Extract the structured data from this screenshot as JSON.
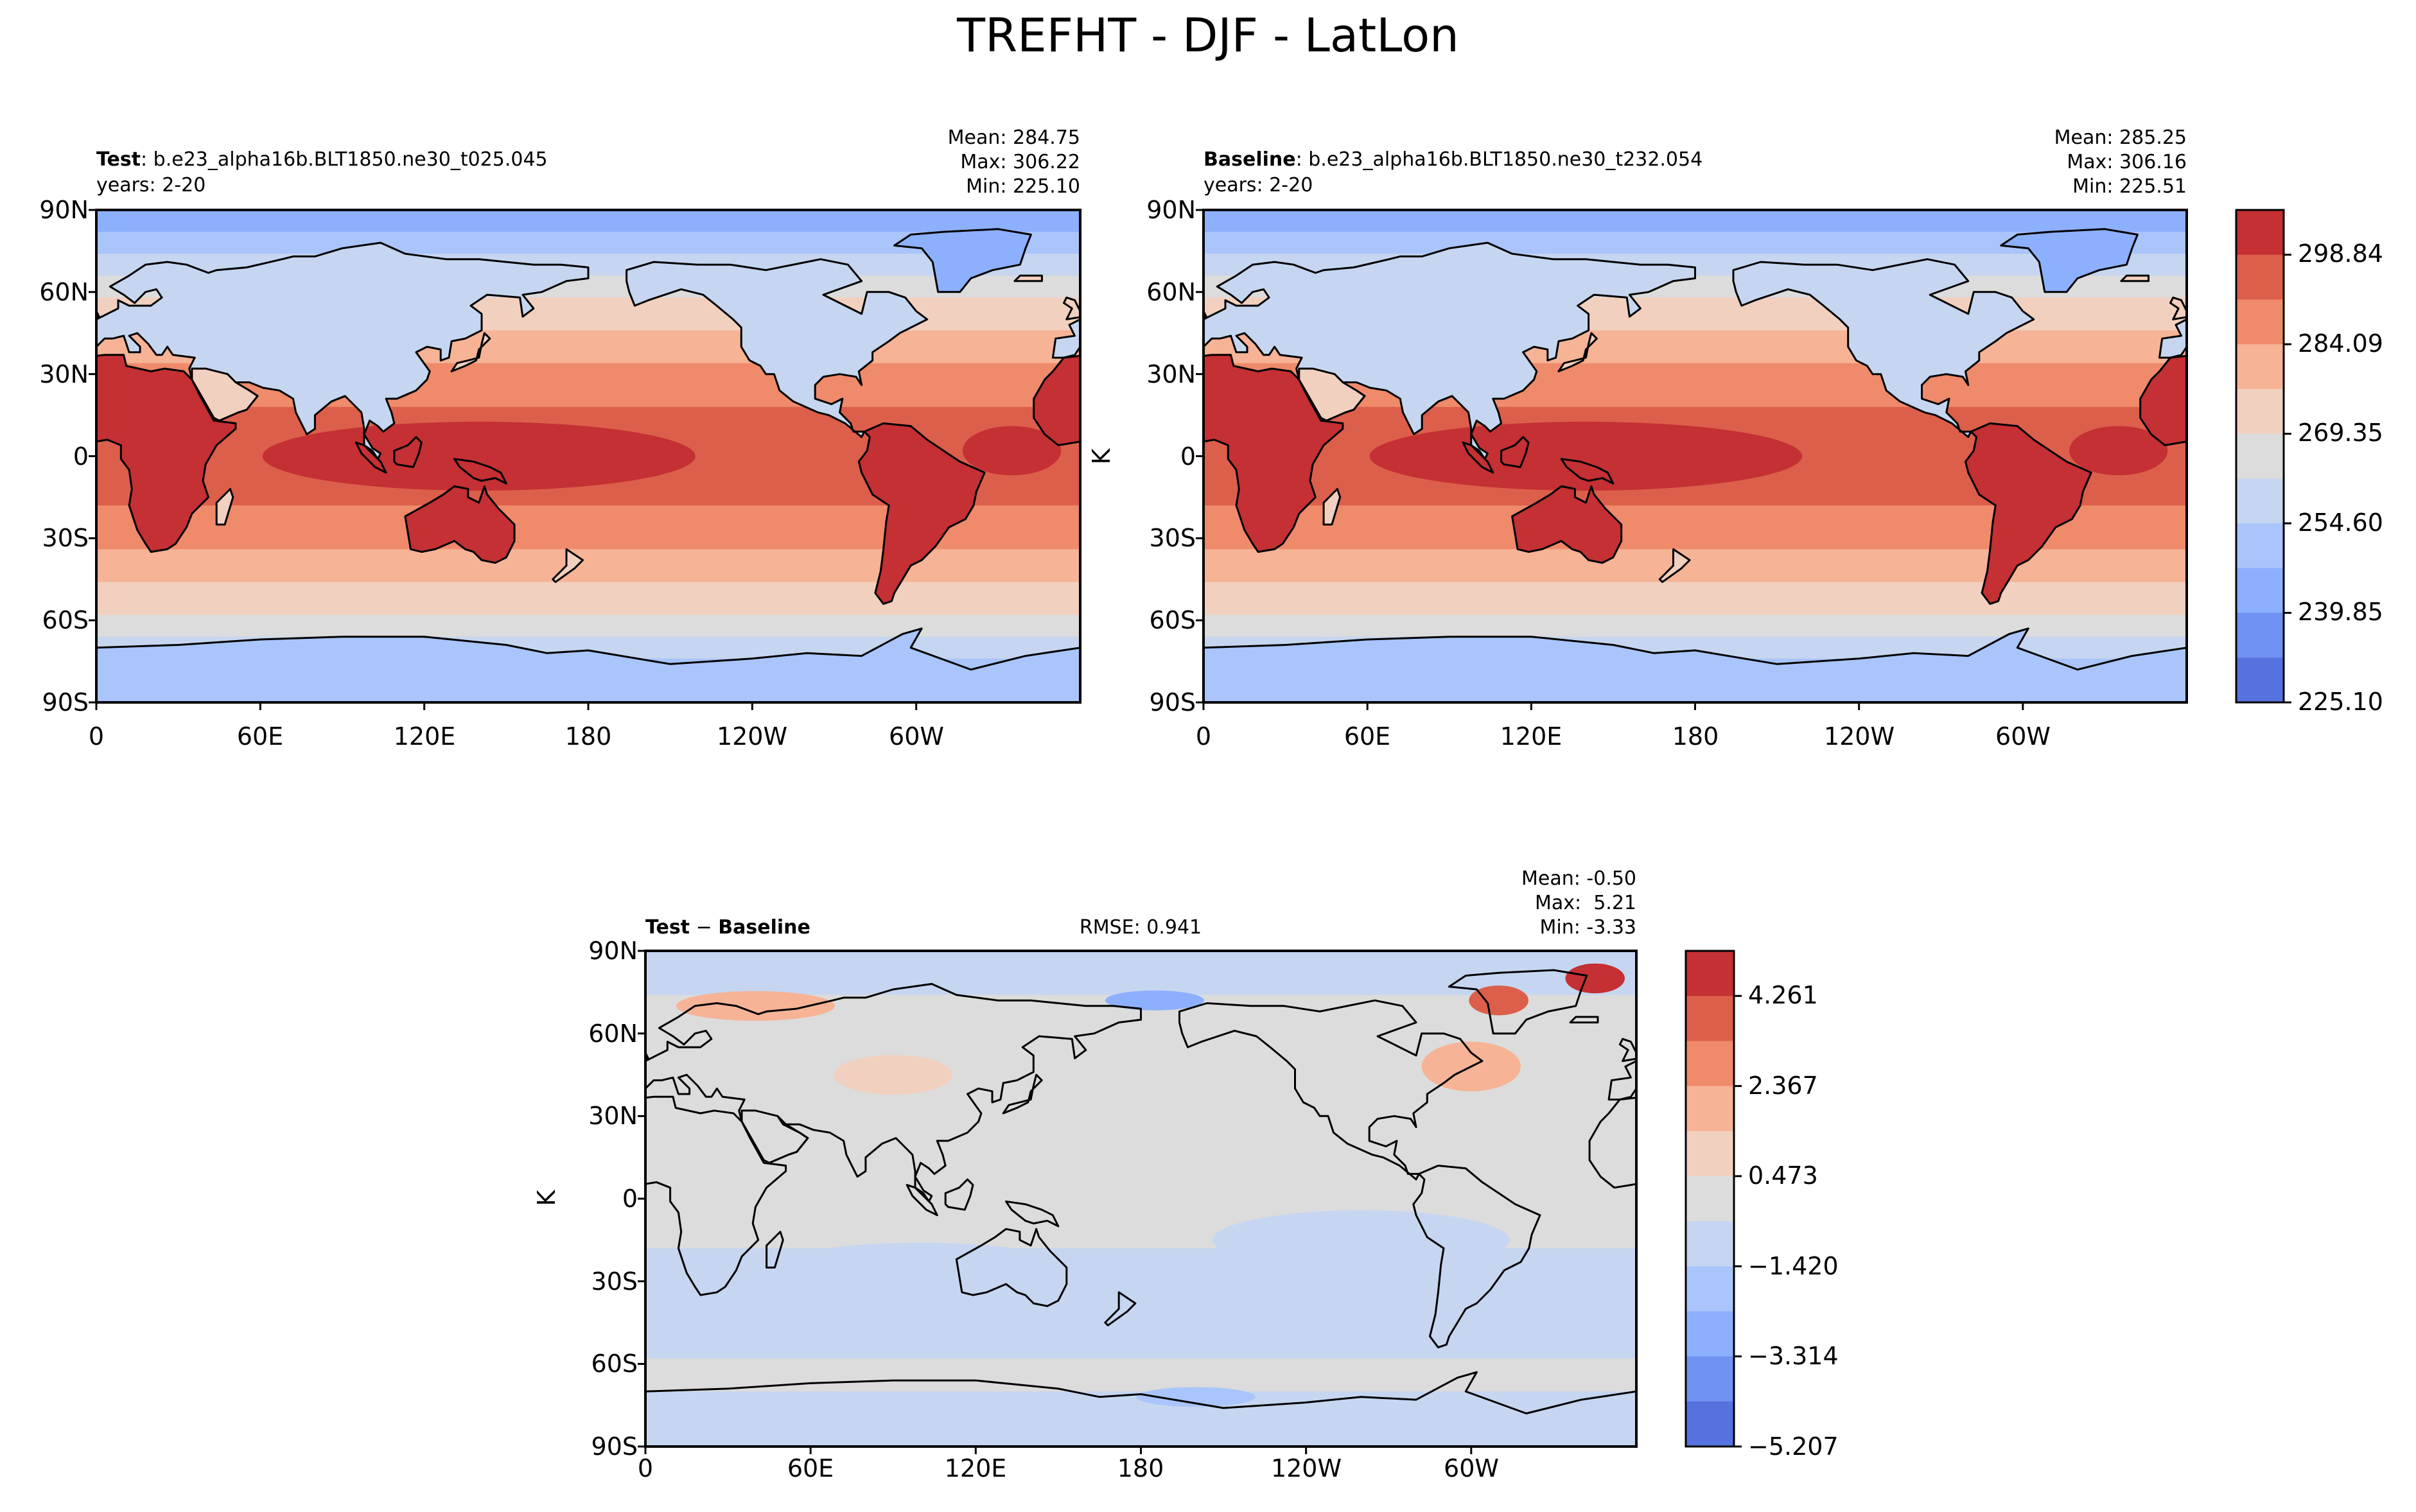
{
  "figure_title": "TREFHT - DJF - LatLon",
  "chart_data": [
    {
      "type": "heatmap",
      "panel": "test",
      "label_bold": "Test",
      "label_rest": ": b.e23_alpha16b.BLT1850.ne30_t025.045",
      "years": "years: 2-20",
      "stats": [
        "Mean: 284.75",
        "Max: 306.22",
        "Min: 225.10"
      ],
      "ylabel": "",
      "x_ticks": [
        "0",
        "60E",
        "120E",
        "180",
        "120W",
        "60W"
      ],
      "y_ticks": [
        "90N",
        "60N",
        "30N",
        "0",
        "30S",
        "60S",
        "90S"
      ],
      "xlim": [
        0,
        360
      ],
      "ylim": [
        -90,
        90
      ],
      "field_kind": "absolute",
      "value_range": [
        225.1,
        306.22
      ]
    },
    {
      "type": "heatmap",
      "panel": "baseline",
      "label_bold": "Baseline",
      "label_rest": ": b.e23_alpha16b.BLT1850.ne30_t232.054",
      "years": "years: 2-20",
      "stats": [
        "Mean: 285.25",
        "Max: 306.16",
        "Min: 225.51"
      ],
      "ylabel": "K",
      "x_ticks": [
        "0",
        "60E",
        "120E",
        "180",
        "120W",
        "60W"
      ],
      "y_ticks": [
        "90N",
        "60N",
        "30N",
        "0",
        "30S",
        "60S",
        "90S"
      ],
      "xlim": [
        0,
        360
      ],
      "ylim": [
        -90,
        90
      ],
      "field_kind": "absolute",
      "value_range": [
        225.51,
        306.16
      ],
      "colorbar": {
        "labels": [
          "298.84",
          "284.09",
          "269.35",
          "254.60",
          "239.85",
          "225.10"
        ],
        "levels": 11,
        "colors": [
          "#c43033",
          "#dc5f4b",
          "#ef8a6b",
          "#f6b396",
          "#f2d0bf",
          "#dcdcdc",
          "#c6d6f0",
          "#a9c5fb",
          "#8db0fe",
          "#6f92f3",
          "#5572df"
        ]
      }
    },
    {
      "type": "heatmap",
      "panel": "diff",
      "label_bold": "Test",
      "label_mid": " − ",
      "label_bold2": "Baseline",
      "rmse": "RMSE: 0.941",
      "stats": [
        "Mean: -0.50",
        "Max:  5.21",
        "Min: -3.33"
      ],
      "ylabel": "K",
      "x_ticks": [
        "0",
        "60E",
        "120E",
        "180",
        "120W",
        "60W"
      ],
      "y_ticks": [
        "90N",
        "60N",
        "30N",
        "0",
        "30S",
        "60S",
        "90S"
      ],
      "xlim": [
        0,
        360
      ],
      "ylim": [
        -90,
        90
      ],
      "field_kind": "difference",
      "value_range": [
        -3.33,
        5.21
      ],
      "colorbar": {
        "labels": [
          "4.261",
          "2.367",
          "0.473",
          "−1.420",
          "−3.314",
          "−5.207"
        ],
        "levels": 11,
        "colors": [
          "#c43033",
          "#dc5f4b",
          "#ef8a6b",
          "#f6b396",
          "#f2d0bf",
          "#dcdcdc",
          "#c6d6f0",
          "#a9c5fb",
          "#8db0fe",
          "#6f92f3",
          "#5572df"
        ]
      }
    }
  ]
}
